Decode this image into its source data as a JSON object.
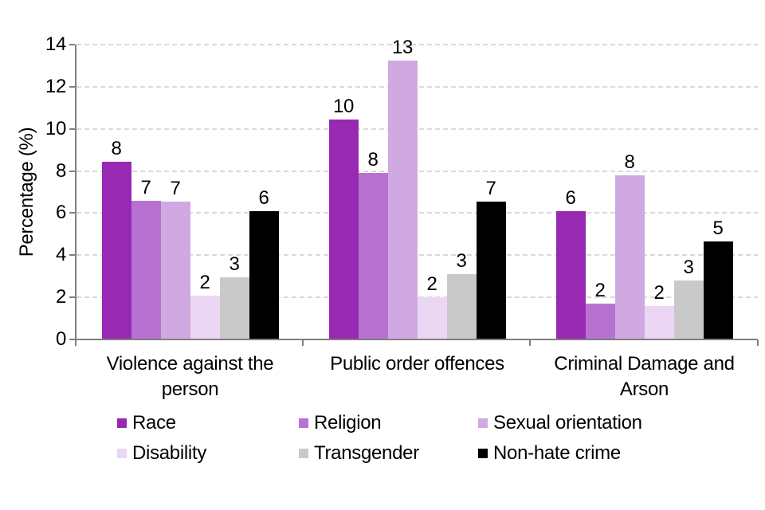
{
  "chart_data": {
    "type": "bar",
    "title": "",
    "xlabel": "",
    "ylabel": "Percentage (%)",
    "ylim": [
      0,
      14
    ],
    "yticks": [
      0,
      2,
      4,
      6,
      8,
      10,
      12,
      14
    ],
    "grid": "horizontal-dashed",
    "legend_position": "bottom",
    "categories": [
      "Violence against the person",
      "Public order offences",
      "Criminal Damage and Arson"
    ],
    "series": [
      {
        "name": "Race",
        "color": "#9829B3",
        "values": [
          8.45,
          10.45,
          6.1
        ],
        "labels": [
          "8",
          "10",
          "6"
        ]
      },
      {
        "name": "Religion",
        "color": "#B772D1",
        "values": [
          6.6,
          7.9,
          1.7
        ],
        "labels": [
          "7",
          "8",
          "2"
        ]
      },
      {
        "name": "Sexual orientation",
        "color": "#D0A9E2",
        "values": [
          6.55,
          13.25,
          7.8
        ],
        "labels": [
          "7",
          "13",
          "8"
        ]
      },
      {
        "name": "Disability",
        "color": "#EBD7F3",
        "values": [
          2.1,
          2.0,
          1.6
        ],
        "labels": [
          "2",
          "2",
          "2"
        ]
      },
      {
        "name": "Transgender",
        "color": "#C9C9C9",
        "values": [
          2.95,
          3.1,
          2.8
        ],
        "labels": [
          "3",
          "3",
          "3"
        ]
      },
      {
        "name": "Non-hate crime",
        "color": "#000000",
        "values": [
          6.1,
          6.55,
          4.65
        ],
        "labels": [
          "6",
          "7",
          "5"
        ]
      }
    ]
  },
  "colors": {
    "axis": "#7F7F7F",
    "grid": "#D9D9D9",
    "text": "#000000",
    "background": "#FFFFFF"
  }
}
